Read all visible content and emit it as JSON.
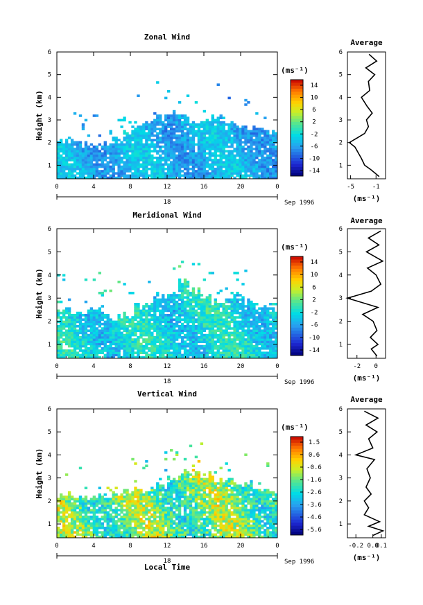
{
  "figure": {
    "xlabel": "Local Time",
    "date_label": "Sep 1996",
    "day_label": "18",
    "profile_title": "Average",
    "units": "(ms⁻¹)"
  },
  "chart_data": [
    {
      "type": "heatmap",
      "title": "Zonal Wind",
      "xlabel": "Local Time",
      "ylabel": "Height (km)",
      "x_ticks": [
        "0",
        "4",
        "8",
        "12",
        "16",
        "20",
        "0"
      ],
      "y_ticks": [
        "1",
        "2",
        "3",
        "4",
        "5",
        "6"
      ],
      "xlim": [
        0,
        24
      ],
      "ylim": [
        0.4,
        6
      ],
      "colorbar": {
        "label": "(ms⁻¹)",
        "ticks": [
          "14",
          "10",
          "6",
          "2",
          "-2",
          "-6",
          "-10",
          "-14"
        ],
        "range": [
          -16,
          16
        ]
      },
      "value_range": [
        -8,
        0
      ],
      "data_bounds": {
        "top_km": [
          2.1,
          2.1,
          2.0,
          1.9,
          2.0,
          2.2,
          2.5,
          2.8,
          3.0,
          3.2,
          3.4,
          3.2,
          3.0,
          3.1,
          3.3,
          2.9,
          2.8,
          2.7,
          2.6,
          2.5
        ],
        "bottom_km": 0.4
      },
      "profile": {
        "title": "Average",
        "xlabel": "(ms⁻¹)",
        "x_ticks": [
          "-5",
          "-1"
        ],
        "xlim": [
          -5.5,
          0.5
        ],
        "heights_km": [
          0.5,
          0.8,
          1.0,
          1.3,
          1.5,
          1.8,
          2.0,
          2.2,
          2.4,
          2.7,
          3.0,
          3.3,
          3.6,
          4.0,
          4.3,
          4.7,
          5.0,
          5.3,
          5.6,
          5.9
        ],
        "values": [
          -0.5,
          -1.8,
          -2.8,
          -3.3,
          -3.7,
          -4.3,
          -5.2,
          -4.0,
          -2.8,
          -2.2,
          -2.5,
          -1.6,
          -2.4,
          -3.3,
          -2.0,
          -2.2,
          -1.2,
          -2.6,
          -0.9,
          -2.1
        ]
      }
    },
    {
      "type": "heatmap",
      "title": "Meridional Wind",
      "xlabel": "Local Time",
      "ylabel": "Height (km)",
      "x_ticks": [
        "0",
        "4",
        "8",
        "12",
        "16",
        "20",
        "0"
      ],
      "y_ticks": [
        "1",
        "2",
        "3",
        "4",
        "5",
        "6"
      ],
      "xlim": [
        0,
        24
      ],
      "ylim": [
        0.4,
        6
      ],
      "colorbar": {
        "label": "(ms⁻¹)",
        "ticks": [
          "14",
          "10",
          "6",
          "2",
          "-2",
          "-6",
          "-10",
          "-14"
        ],
        "range": [
          -16,
          16
        ]
      },
      "value_range": [
        -6,
        4
      ],
      "data_bounds": {
        "top_km": [
          2.6,
          2.5,
          2.4,
          2.6,
          2.3,
          2.2,
          2.4,
          2.7,
          2.9,
          3.1,
          3.3,
          3.8,
          3.4,
          3.1,
          2.9,
          3.0,
          3.2,
          2.9,
          2.7,
          2.6
        ],
        "bottom_km": 0.4
      },
      "profile": {
        "title": "Average",
        "xlabel": "(ms⁻¹)",
        "x_ticks": [
          "-2",
          "0"
        ],
        "xlim": [
          -3,
          1
        ],
        "heights_km": [
          0.5,
          0.8,
          1.0,
          1.3,
          1.6,
          2.0,
          2.3,
          2.6,
          3.0,
          3.3,
          3.6,
          4.0,
          4.3,
          4.6,
          5.0,
          5.3,
          5.6,
          5.9
        ],
        "values": [
          0.1,
          -0.5,
          0.2,
          -0.6,
          0.1,
          -0.3,
          -1.4,
          0.2,
          -3.0,
          -0.5,
          0.5,
          0.0,
          -0.9,
          0.7,
          -1.0,
          0.3,
          -0.8,
          0.5
        ]
      }
    },
    {
      "type": "heatmap",
      "title": "Vertical Wind",
      "xlabel": "Local Time",
      "ylabel": "Height (km)",
      "x_ticks": [
        "0",
        "4",
        "8",
        "12",
        "16",
        "20",
        "0"
      ],
      "y_ticks": [
        "1",
        "2",
        "3",
        "4",
        "5",
        "6"
      ],
      "xlim": [
        0,
        24
      ],
      "ylim": [
        0.4,
        6
      ],
      "colorbar": {
        "label": "(ms⁻¹)",
        "ticks": [
          "1.5",
          "0.6",
          "-0.6",
          "-1.6",
          "-2.6",
          "-3.6",
          "-4.6",
          "-5.6"
        ],
        "range": [
          -6,
          2
        ]
      },
      "value_range": [
        -3,
        1
      ],
      "data_bounds": {
        "top_km": [
          2.3,
          2.3,
          2.2,
          2.2,
          2.3,
          2.4,
          2.5,
          2.6,
          2.6,
          2.8,
          3.0,
          3.3,
          3.4,
          3.2,
          3.0,
          2.9,
          2.8,
          2.7,
          2.6,
          2.5
        ],
        "bottom_km": 0.4
      },
      "profile": {
        "title": "Average",
        "xlabel": "(ms⁻¹)",
        "x_ticks": [
          "-0.2",
          "0.0",
          "0.1"
        ],
        "xlim": [
          -0.3,
          0.15
        ],
        "heights_km": [
          0.5,
          0.7,
          0.9,
          1.1,
          1.4,
          1.7,
          2.0,
          2.3,
          2.6,
          3.0,
          3.4,
          3.8,
          4.0,
          4.3,
          4.7,
          5.0,
          5.3,
          5.6,
          5.9
        ],
        "values": [
          0.0,
          0.12,
          -0.05,
          0.08,
          -0.1,
          -0.05,
          -0.1,
          -0.02,
          -0.08,
          -0.03,
          -0.07,
          0.02,
          -0.2,
          0.0,
          -0.05,
          0.05,
          -0.08,
          0.06,
          -0.1
        ]
      }
    }
  ]
}
